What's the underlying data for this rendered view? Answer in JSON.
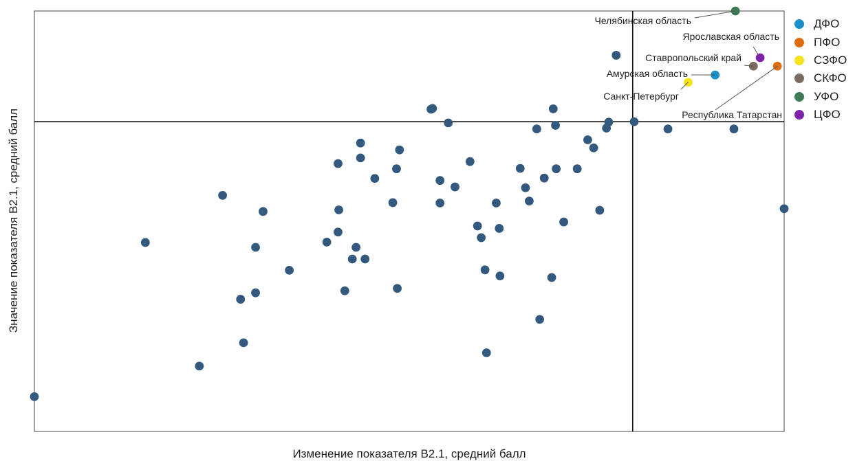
{
  "chart_data": {
    "type": "scatter",
    "title": "",
    "xlabel": "Изменение показателя В2.1, средний балл",
    "ylabel": "Значение показателя В2.1, средний балл",
    "xlim": [
      0,
      100
    ],
    "ylim": [
      0,
      100
    ],
    "reference_lines": {
      "x": 79.8,
      "y": 72.5
    },
    "grid": false,
    "legend_position": "right",
    "default_color": "#34597f",
    "series": [
      {
        "name": "ДФО",
        "color": "#1b8fc8",
        "points": [
          {
            "x": 90.8,
            "y": 84.1,
            "label": "Амурская область"
          }
        ]
      },
      {
        "name": "ПФО",
        "color": "#de6c0e",
        "points": [
          {
            "x": 99.1,
            "y": 86.3,
            "label": "Республика Татарстан"
          }
        ]
      },
      {
        "name": "СЗФО",
        "color": "#f4e21a",
        "points": [
          {
            "x": 87.2,
            "y": 82.3,
            "label": "Санкт-Петербург"
          }
        ]
      },
      {
        "name": "СКФО",
        "color": "#7b6d62",
        "points": [
          {
            "x": 95.9,
            "y": 86.3,
            "label": "Ставропольский край"
          }
        ]
      },
      {
        "name": "УФО",
        "color": "#3e7b55",
        "points": [
          {
            "x": 93.5,
            "y": 100.0,
            "label": "Челябинская область"
          }
        ]
      },
      {
        "name": "ЦФО",
        "color": "#7e22ab",
        "points": [
          {
            "x": 96.8,
            "y": 88.4,
            "label": "Ярославская область"
          }
        ]
      }
    ],
    "other_points": [
      {
        "x": 0.0,
        "y": 4.2
      },
      {
        "x": 14.8,
        "y": 42.5
      },
      {
        "x": 25.1,
        "y": 54.2
      },
      {
        "x": 22.0,
        "y": 11.8
      },
      {
        "x": 27.5,
        "y": 28.4
      },
      {
        "x": 27.9,
        "y": 17.6
      },
      {
        "x": 29.5,
        "y": 41.3
      },
      {
        "x": 29.5,
        "y": 30.0
      },
      {
        "x": 30.5,
        "y": 50.2
      },
      {
        "x": 34.0,
        "y": 35.6
      },
      {
        "x": 39.0,
        "y": 42.6
      },
      {
        "x": 40.5,
        "y": 62.1
      },
      {
        "x": 40.6,
        "y": 50.6
      },
      {
        "x": 40.5,
        "y": 45.1
      },
      {
        "x": 41.4,
        "y": 30.5
      },
      {
        "x": 43.5,
        "y": 67.2
      },
      {
        "x": 43.5,
        "y": 63.5
      },
      {
        "x": 42.9,
        "y": 41.3
      },
      {
        "x": 42.4,
        "y": 38.4
      },
      {
        "x": 44.1,
        "y": 38.4
      },
      {
        "x": 45.4,
        "y": 58.4
      },
      {
        "x": 47.8,
        "y": 52.4
      },
      {
        "x": 48.3,
        "y": 60.8
      },
      {
        "x": 48.7,
        "y": 65.5
      },
      {
        "x": 48.4,
        "y": 31.1
      },
      {
        "x": 52.9,
        "y": 75.6
      },
      {
        "x": 53.1,
        "y": 75.8
      },
      {
        "x": 55.2,
        "y": 72.2
      },
      {
        "x": 54.1,
        "y": 57.9
      },
      {
        "x": 54.1,
        "y": 52.3
      },
      {
        "x": 56.1,
        "y": 56.3
      },
      {
        "x": 58.1,
        "y": 62.6
      },
      {
        "x": 59.1,
        "y": 46.6
      },
      {
        "x": 59.6,
        "y": 43.7
      },
      {
        "x": 60.1,
        "y": 35.7
      },
      {
        "x": 60.3,
        "y": 15.1
      },
      {
        "x": 61.6,
        "y": 52.3
      },
      {
        "x": 62.0,
        "y": 46.0
      },
      {
        "x": 62.1,
        "y": 34.2
      },
      {
        "x": 64.8,
        "y": 60.9
      },
      {
        "x": 65.5,
        "y": 56.1
      },
      {
        "x": 66.0,
        "y": 52.8
      },
      {
        "x": 67.4,
        "y": 23.4
      },
      {
        "x": 67.0,
        "y": 70.7
      },
      {
        "x": 68.0,
        "y": 58.5
      },
      {
        "x": 69.0,
        "y": 33.8
      },
      {
        "x": 69.2,
        "y": 75.7
      },
      {
        "x": 69.5,
        "y": 71.6
      },
      {
        "x": 69.6,
        "y": 60.8
      },
      {
        "x": 70.6,
        "y": 47.6
      },
      {
        "x": 72.4,
        "y": 60.8
      },
      {
        "x": 73.8,
        "y": 68.0
      },
      {
        "x": 74.6,
        "y": 66.0
      },
      {
        "x": 75.4,
        "y": 50.5
      },
      {
        "x": 76.3,
        "y": 70.9
      },
      {
        "x": 76.6,
        "y": 72.4
      },
      {
        "x": 77.6,
        "y": 89.0
      },
      {
        "x": 80.0,
        "y": 72.5
      },
      {
        "x": 84.5,
        "y": 70.7
      },
      {
        "x": 93.3,
        "y": 70.7
      },
      {
        "x": 100.0,
        "y": 50.9
      }
    ]
  }
}
